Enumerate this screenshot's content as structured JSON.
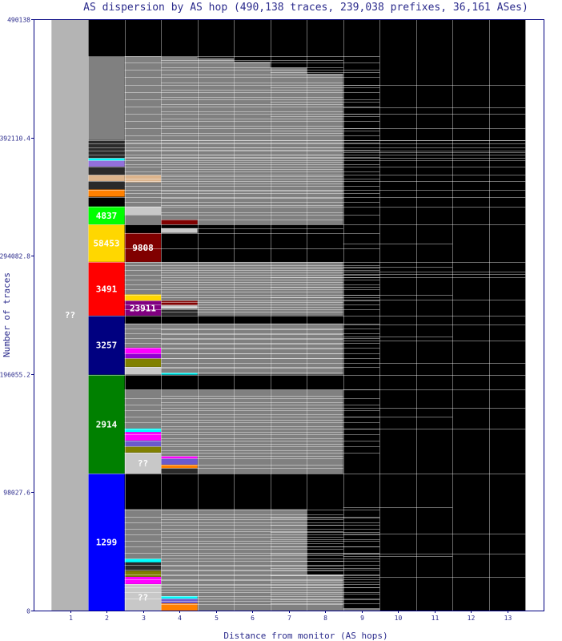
{
  "chart_data": {
    "type": "stacked-bar",
    "title": "AS dispersion by AS hop (490,138 traces, 239,038 prefixes, 36,161 ASes)",
    "xlabel": "Distance from monitor (AS hops)",
    "ylabel": "Number of traces",
    "xlim": [
      1,
      13
    ],
    "ylim": [
      0,
      490138
    ],
    "x_ticks": [
      "1",
      "2",
      "3",
      "4",
      "5",
      "6",
      "7",
      "8",
      "9",
      "10",
      "11",
      "12",
      "13"
    ],
    "y_ticks": [
      "0",
      "98027.6",
      "196055.2",
      "294082.8",
      "392110.4",
      "490138"
    ],
    "y_tick_values": [
      0,
      98027.6,
      196055.2,
      294082.8,
      392110.4,
      490138
    ],
    "colors": {
      "background": "#000000",
      "frame": "#000080",
      "unknown": "#b4b4b4",
      "other": "#808080",
      "line": "#ffffff"
    },
    "columns": [
      {
        "hop": "1",
        "segments": [
          {
            "from": 0,
            "to": 490138,
            "color": "#b4b4b4",
            "label": "??"
          }
        ]
      },
      {
        "hop": "2",
        "segments": [
          {
            "from": 0,
            "to": 113500,
            "color": "#0000ff",
            "label": "1299"
          },
          {
            "from": 113500,
            "to": 195500,
            "color": "#008000",
            "label": "2914"
          },
          {
            "from": 195500,
            "to": 244500,
            "color": "#000080",
            "label": "3257"
          },
          {
            "from": 244500,
            "to": 289000,
            "color": "#ff0000",
            "label": "3491"
          },
          {
            "from": 289000,
            "to": 320000,
            "color": "#ffd700",
            "label": "58453"
          },
          {
            "from": 320000,
            "to": 335000,
            "color": "#00ff00",
            "label": "4837"
          },
          {
            "from": 335000,
            "to": 343000,
            "color": "#000000"
          },
          {
            "from": 343000,
            "to": 349000,
            "color": "#ff8000"
          },
          {
            "from": 349000,
            "to": 356000,
            "color": "#2a2a2a"
          },
          {
            "from": 356000,
            "to": 361000,
            "color": "#dcb48c"
          },
          {
            "from": 361000,
            "to": 368000,
            "color": "#2a2a2a"
          },
          {
            "from": 368000,
            "to": 373000,
            "color": "#9370db"
          },
          {
            "from": 373000,
            "to": 375000,
            "color": "#00ffff"
          },
          {
            "from": 375000,
            "to": 390000,
            "color": "#2a2a2a"
          },
          {
            "from": 390000,
            "to": 459500,
            "color": "#808080"
          },
          {
            "from": 459500,
            "to": 490138,
            "color": "#000000"
          }
        ]
      },
      {
        "hop": "3",
        "segments": [
          {
            "from": 0,
            "to": 22000,
            "color": "#c8c8c8",
            "label": "??"
          },
          {
            "from": 22000,
            "to": 28000,
            "color": "#ff00ff"
          },
          {
            "from": 28000,
            "to": 33000,
            "color": "#808000"
          },
          {
            "from": 33000,
            "to": 40000,
            "color": "#2a2a2a"
          },
          {
            "from": 40000,
            "to": 43000,
            "color": "#00ffff"
          },
          {
            "from": 43000,
            "to": 84000,
            "color": "#808080"
          },
          {
            "from": 84000,
            "to": 113500,
            "color": "#000000"
          },
          {
            "from": 113500,
            "to": 131000,
            "color": "#c8c8c8",
            "label": "??"
          },
          {
            "from": 131000,
            "to": 136000,
            "color": "#808000"
          },
          {
            "from": 136000,
            "to": 141000,
            "color": "#6a5acd"
          },
          {
            "from": 141000,
            "to": 148000,
            "color": "#ff00ff"
          },
          {
            "from": 148000,
            "to": 151000,
            "color": "#00ffff"
          },
          {
            "from": 151000,
            "to": 183000,
            "color": "#808080"
          },
          {
            "from": 183000,
            "to": 195500,
            "color": "#000000"
          },
          {
            "from": 195500,
            "to": 202000,
            "color": "#c8c8c8"
          },
          {
            "from": 202000,
            "to": 209000,
            "color": "#808000"
          },
          {
            "from": 209000,
            "to": 213000,
            "color": "#9400d3"
          },
          {
            "from": 213000,
            "to": 218000,
            "color": "#ff00ff"
          },
          {
            "from": 218000,
            "to": 238000,
            "color": "#808080"
          },
          {
            "from": 238000,
            "to": 244500,
            "color": "#000000"
          },
          {
            "from": 244500,
            "to": 257000,
            "color": "#800080",
            "label": "23911"
          },
          {
            "from": 257000,
            "to": 262000,
            "color": "#ffd700"
          },
          {
            "from": 262000,
            "to": 289000,
            "color": "#808080"
          },
          {
            "from": 289000,
            "to": 313000,
            "color": "#800000",
            "label": "9808"
          },
          {
            "from": 313000,
            "to": 320000,
            "color": "#000000"
          },
          {
            "from": 320000,
            "to": 328000,
            "color": "#808080"
          },
          {
            "from": 328000,
            "to": 335000,
            "color": "#c8c8c8"
          },
          {
            "from": 335000,
            "to": 355000,
            "color": "#808080"
          },
          {
            "from": 355000,
            "to": 361000,
            "color": "#dcb48c"
          },
          {
            "from": 361000,
            "to": 459500,
            "color": "#808080"
          },
          {
            "from": 459500,
            "to": 490138,
            "color": "#000000"
          }
        ]
      },
      {
        "hop": "4",
        "segments": [
          {
            "from": 0,
            "to": 6000,
            "color": "#ff8000"
          },
          {
            "from": 6000,
            "to": 10000,
            "color": "#6a5acd"
          },
          {
            "from": 10000,
            "to": 12000,
            "color": "#00ffff"
          },
          {
            "from": 12000,
            "to": 84000,
            "color": "#808080"
          },
          {
            "from": 84000,
            "to": 113500,
            "color": "#000000"
          },
          {
            "from": 113500,
            "to": 118000,
            "color": "#2a2a2a"
          },
          {
            "from": 118000,
            "to": 121000,
            "color": "#ff8000"
          },
          {
            "from": 121000,
            "to": 126000,
            "color": "#6a5acd"
          },
          {
            "from": 126000,
            "to": 128000,
            "color": "#ff00ff"
          },
          {
            "from": 128000,
            "to": 183000,
            "color": "#808080"
          },
          {
            "from": 183000,
            "to": 195500,
            "color": "#000000"
          },
          {
            "from": 195500,
            "to": 197000,
            "color": "#00ffff"
          },
          {
            "from": 197000,
            "to": 238000,
            "color": "#808080"
          },
          {
            "from": 238000,
            "to": 244500,
            "color": "#000000"
          },
          {
            "from": 244500,
            "to": 250000,
            "color": "#2a2a2a"
          },
          {
            "from": 250000,
            "to": 253000,
            "color": "#c8c8c8"
          },
          {
            "from": 253000,
            "to": 257000,
            "color": "#800000"
          },
          {
            "from": 257000,
            "to": 289000,
            "color": "#808080"
          },
          {
            "from": 289000,
            "to": 313000,
            "color": "#000000"
          },
          {
            "from": 313000,
            "to": 317000,
            "color": "#c8c8c8"
          },
          {
            "from": 317000,
            "to": 320000,
            "color": "#000000"
          },
          {
            "from": 320000,
            "to": 324000,
            "color": "#800000"
          },
          {
            "from": 324000,
            "to": 459000,
            "color": "#808080"
          },
          {
            "from": 459000,
            "to": 490138,
            "color": "#000000"
          }
        ]
      },
      {
        "hop": "5",
        "segments": [
          {
            "from": 0,
            "to": 84000,
            "color": "#808080"
          },
          {
            "from": 84000,
            "to": 113500,
            "color": "#000000"
          },
          {
            "from": 113500,
            "to": 183000,
            "color": "#808080"
          },
          {
            "from": 183000,
            "to": 195500,
            "color": "#000000"
          },
          {
            "from": 195500,
            "to": 238000,
            "color": "#808080"
          },
          {
            "from": 238000,
            "to": 244500,
            "color": "#000000"
          },
          {
            "from": 244500,
            "to": 289000,
            "color": "#808080"
          },
          {
            "from": 289000,
            "to": 320000,
            "color": "#000000"
          },
          {
            "from": 320000,
            "to": 458000,
            "color": "#808080"
          },
          {
            "from": 458000,
            "to": 490138,
            "color": "#000000"
          }
        ]
      },
      {
        "hop": "6",
        "segments": [
          {
            "from": 0,
            "to": 84000,
            "color": "#808080"
          },
          {
            "from": 84000,
            "to": 113500,
            "color": "#000000"
          },
          {
            "from": 113500,
            "to": 183000,
            "color": "#808080"
          },
          {
            "from": 183000,
            "to": 195500,
            "color": "#000000"
          },
          {
            "from": 195500,
            "to": 238000,
            "color": "#808080"
          },
          {
            "from": 238000,
            "to": 244500,
            "color": "#000000"
          },
          {
            "from": 244500,
            "to": 289000,
            "color": "#808080"
          },
          {
            "from": 289000,
            "to": 320000,
            "color": "#000000"
          },
          {
            "from": 320000,
            "to": 455000,
            "color": "#808080"
          },
          {
            "from": 455000,
            "to": 490138,
            "color": "#000000"
          }
        ]
      },
      {
        "hop": "7",
        "segments": [
          {
            "from": 0,
            "to": 84000,
            "color": "#808080"
          },
          {
            "from": 84000,
            "to": 113500,
            "color": "#000000"
          },
          {
            "from": 113500,
            "to": 183000,
            "color": "#808080"
          },
          {
            "from": 183000,
            "to": 195500,
            "color": "#000000"
          },
          {
            "from": 195500,
            "to": 238000,
            "color": "#808080"
          },
          {
            "from": 238000,
            "to": 244500,
            "color": "#000000"
          },
          {
            "from": 244500,
            "to": 289000,
            "color": "#808080"
          },
          {
            "from": 289000,
            "to": 320000,
            "color": "#000000"
          },
          {
            "from": 320000,
            "to": 450000,
            "color": "#808080"
          },
          {
            "from": 450000,
            "to": 490138,
            "color": "#000000"
          }
        ]
      },
      {
        "hop": "8",
        "segments": [
          {
            "from": 0,
            "to": 30000,
            "color": "#808080"
          },
          {
            "from": 30000,
            "to": 113500,
            "color": "#000000"
          },
          {
            "from": 113500,
            "to": 183000,
            "color": "#808080"
          },
          {
            "from": 183000,
            "to": 195500,
            "color": "#000000"
          },
          {
            "from": 195500,
            "to": 238000,
            "color": "#808080"
          },
          {
            "from": 238000,
            "to": 244500,
            "color": "#000000"
          },
          {
            "from": 244500,
            "to": 289000,
            "color": "#808080"
          },
          {
            "from": 289000,
            "to": 320000,
            "color": "#000000"
          },
          {
            "from": 320000,
            "to": 445000,
            "color": "#808080"
          },
          {
            "from": 445000,
            "to": 490138,
            "color": "#000000"
          }
        ]
      },
      {
        "hop": "9",
        "segments": [
          {
            "from": 0,
            "to": 2000,
            "color": "#808080"
          },
          {
            "from": 2000,
            "to": 490138,
            "color": "#000000"
          }
        ]
      },
      {
        "hop": "10",
        "segments": [
          {
            "from": 0,
            "to": 490138,
            "color": "#000000"
          }
        ]
      },
      {
        "hop": "11",
        "segments": [
          {
            "from": 0,
            "to": 490138,
            "color": "#000000"
          }
        ]
      },
      {
        "hop": "12",
        "segments": [
          {
            "from": 0,
            "to": 490138,
            "color": "#000000"
          }
        ]
      },
      {
        "hop": "13",
        "segments": [
          {
            "from": 0,
            "to": 490138,
            "color": "#000000"
          }
        ]
      }
    ],
    "separators": [
      {
        "from_hop": 1,
        "to_hop": 13,
        "values": [
          0,
          490138
        ]
      },
      {
        "from_hop": 2,
        "to_hop": 13,
        "values": [
          113500,
          195500,
          244500,
          289000,
          320000,
          335000,
          343000,
          349000,
          356000,
          361000,
          368000,
          373000,
          375000,
          378000,
          381000,
          384000,
          387000,
          390000
        ]
      },
      {
        "from_hop": 3,
        "to_hop": 9,
        "values": [
          10000,
          15000,
          19000,
          22000,
          26000,
          30000,
          34000,
          38000,
          43000,
          48000,
          53000,
          58000,
          63000,
          68000,
          73000,
          78000,
          84000,
          131000,
          136000,
          141000,
          146000,
          151000,
          156000,
          161000,
          166000,
          171000,
          176000,
          183000,
          202000,
          209000,
          213000,
          218000,
          222000,
          226000,
          230000,
          234000,
          238000,
          250000,
          254000,
          257000,
          262000,
          266000,
          270000,
          274000,
          278000,
          282000,
          286000,
          300000,
          313000,
          328000,
          339000,
          346000,
          352000,
          358000,
          364000,
          370000,
          376000,
          382000,
          388000,
          394000,
          400000,
          406000,
          412000,
          418000,
          424000,
          430000,
          436000,
          442000,
          448000,
          454000,
          459500
        ]
      },
      {
        "from_hop": 4,
        "to_hop": 8,
        "values": [
          5000,
          8000,
          12000,
          17000,
          21000,
          25000,
          29000,
          33000,
          37000,
          41000,
          46000,
          51000,
          56000,
          61000,
          66000,
          71000,
          76000,
          80000,
          118000,
          121000,
          126000,
          128000,
          133000,
          138000,
          143000,
          148000,
          153000,
          158000,
          163000,
          168000,
          173000,
          178000,
          197000,
          201000,
          205000,
          209000,
          213000,
          217000,
          221000,
          225000,
          229000,
          233000,
          248000,
          252000,
          256000,
          260000,
          264000,
          268000,
          272000,
          276000,
          280000,
          284000,
          317000,
          324000,
          330000,
          336000,
          342000,
          348000,
          354000,
          360000,
          366000,
          372000,
          378000,
          384000,
          390000,
          396000,
          402000,
          408000,
          414000,
          420000,
          426000,
          432000,
          438000,
          444000,
          450000,
          456000
        ]
      },
      {
        "from_hop": 7,
        "to_hop": 9,
        "values": [
          6000,
          9000,
          14000,
          19000,
          24000,
          29000,
          35000,
          41000,
          47000,
          53000,
          59000,
          65000,
          71000,
          77000,
          260000,
          268000,
          276000,
          284000,
          398000,
          410000,
          422000,
          434000,
          446000
        ]
      },
      {
        "from_hop": 9,
        "to_hop": 13,
        "values": [
          28000,
          47000,
          64000,
          151000,
          168000,
          183000,
          205000,
          224000,
          237000,
          258000,
          276000,
          279000,
          281000,
          380000,
          390000,
          400000,
          412000,
          417000,
          436000
        ]
      },
      {
        "from_hop": 9,
        "to_hop": 11,
        "values": [
          45000,
          86000,
          161000,
          227000,
          262000,
          285000,
          304000
        ]
      }
    ]
  }
}
